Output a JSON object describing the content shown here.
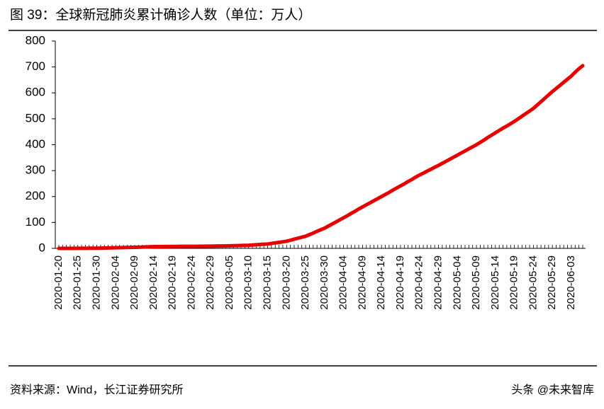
{
  "chart_data": {
    "type": "line",
    "title": "图 39：全球新冠肺炎累计确诊人数（单位：万人）",
    "source": "资料来源：Wind，长江证券研究所",
    "watermark": "头条 @未来智库",
    "categories": [
      "2020-01-20",
      null,
      null,
      null,
      null,
      "2020-01-25",
      null,
      null,
      null,
      null,
      "2020-01-30",
      null,
      null,
      null,
      null,
      "2020-02-04",
      null,
      null,
      null,
      null,
      "2020-02-09",
      null,
      null,
      null,
      null,
      "2020-02-14",
      null,
      null,
      null,
      null,
      "2020-02-19",
      null,
      null,
      null,
      null,
      "2020-02-24",
      null,
      null,
      null,
      null,
      "2020-02-29",
      null,
      null,
      null,
      null,
      "2020-03-05",
      null,
      null,
      null,
      null,
      "2020-03-10",
      null,
      null,
      null,
      null,
      "2020-03-15",
      null,
      null,
      null,
      null,
      "2020-03-20",
      null,
      null,
      null,
      null,
      "2020-03-25",
      null,
      null,
      null,
      null,
      "2020-03-30",
      null,
      null,
      null,
      null,
      "2020-04-04",
      null,
      null,
      null,
      null,
      "2020-04-09",
      null,
      null,
      null,
      null,
      "2020-04-14",
      null,
      null,
      null,
      null,
      "2020-04-19",
      null,
      null,
      null,
      null,
      "2020-04-24",
      null,
      null,
      null,
      null,
      "2020-04-29",
      null,
      null,
      null,
      null,
      "2020-05-04",
      null,
      null,
      null,
      null,
      "2020-05-09",
      null,
      null,
      null,
      null,
      "2020-05-14",
      null,
      null,
      null,
      null,
      "2020-05-19",
      null,
      null,
      null,
      null,
      "2020-05-24",
      null,
      null,
      null,
      null,
      "2020-05-29",
      null,
      null,
      null,
      null,
      "2020-06-03",
      null,
      null,
      null
    ],
    "series": [
      {
        "color": "#e60000",
        "values": [
          0.03,
          0.06,
          0.1,
          0.13,
          0.17,
          0.2,
          0.3,
          0.4,
          0.6,
          0.7,
          0.8,
          1.1,
          1.4,
          1.8,
          2.1,
          2.4,
          2.7,
          3.0,
          3.4,
          3.7,
          4.0,
          4.5,
          5.1,
          5.6,
          6.2,
          6.7,
          6.9,
          7.0,
          7.2,
          7.3,
          7.5,
          7.6,
          7.7,
          7.7,
          7.8,
          7.9,
          8.0,
          8.2,
          8.3,
          8.5,
          8.6,
          8.8,
          9.1,
          9.3,
          9.6,
          9.8,
          10.2,
          10.6,
          11.1,
          11.5,
          11.9,
          12.9,
          13.9,
          14.9,
          15.9,
          16.9,
          19,
          21.1,
          23.3,
          25.4,
          27.5,
          31.4,
          35.3,
          39.2,
          43.1,
          47,
          53,
          59,
          66,
          72,
          78,
          86,
          94,
          102,
          110,
          118,
          126,
          135,
          143,
          152,
          160,
          168,
          176,
          184,
          192,
          200,
          208,
          216,
          225,
          233,
          241,
          249,
          258,
          266,
          275,
          283,
          290,
          298,
          305,
          313,
          320,
          328,
          336,
          344,
          352,
          360,
          368,
          376,
          384,
          392,
          400,
          409,
          418,
          428,
          437,
          446,
          455,
          464,
          472,
          481,
          490,
          500,
          510,
          520,
          530,
          540,
          553,
          566,
          579,
          592,
          605,
          617,
          629,
          641,
          653,
          665,
          680,
          693,
          705
        ]
      }
    ],
    "ylim": [
      0,
      800
    ],
    "yticks": [
      0,
      100,
      200,
      300,
      400,
      500,
      600,
      700,
      800
    ]
  }
}
